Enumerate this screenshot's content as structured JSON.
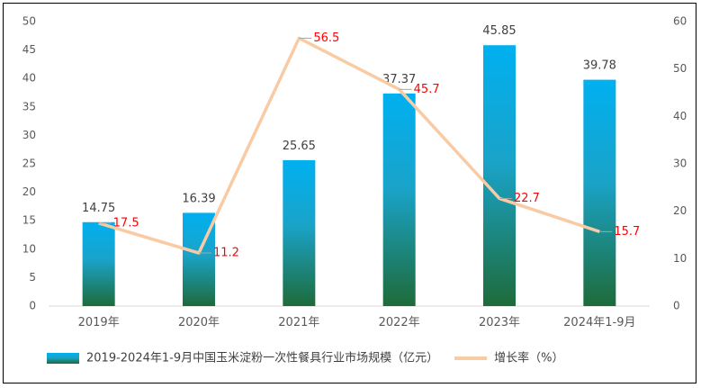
{
  "chart_data": {
    "type": "bar+line",
    "categories": [
      "2019年",
      "2020年",
      "2021年",
      "2022年",
      "2023年",
      "2024年1-9月"
    ],
    "series": [
      {
        "name": "2019-2024年1-9月中国玉米淀粉一次性餐具行业市场规模（亿元）",
        "type": "bar",
        "axis": "left",
        "values": [
          14.75,
          16.39,
          25.65,
          37.37,
          45.85,
          39.78
        ],
        "labels": [
          "14.75",
          "16.39",
          "25.65",
          "37.37",
          "45.85",
          "39.78"
        ]
      },
      {
        "name": "增长率（%）",
        "type": "line",
        "axis": "right",
        "values": [
          17.5,
          11.2,
          56.5,
          45.7,
          22.7,
          15.7
        ],
        "labels": [
          "17.5",
          "11.2",
          "56.5",
          "45.7",
          "22.7",
          "15.7"
        ]
      }
    ],
    "left_axis": {
      "min": 0,
      "max": 50,
      "ticks": [
        "0",
        "5",
        "10",
        "15",
        "20",
        "25",
        "30",
        "35",
        "40",
        "45",
        "50"
      ]
    },
    "right_axis": {
      "min": 0,
      "max": 60,
      "ticks": [
        "0",
        "10",
        "20",
        "30",
        "40",
        "50",
        "60"
      ]
    },
    "grid": false,
    "legend_position": "bottom",
    "colors": {
      "bar_top": "#00b0f0",
      "bar_bottom": "#1e6b3a",
      "line": "#f8cba4",
      "line_label": "#ff0000",
      "axis_text": "#595959",
      "bar_label": "#404040"
    }
  }
}
